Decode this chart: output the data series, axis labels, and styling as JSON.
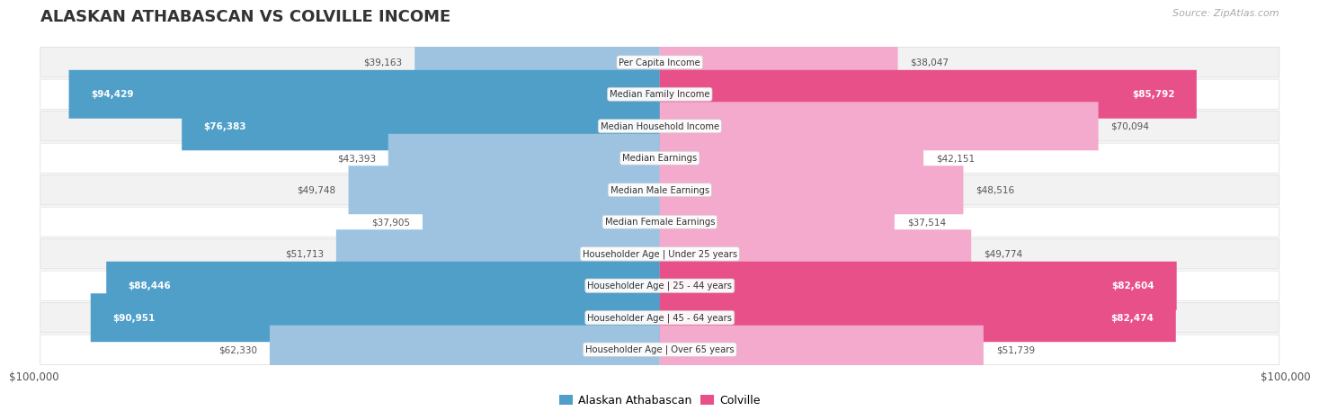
{
  "title": "ALASKAN ATHABASCAN VS COLVILLE INCOME",
  "source": "Source: ZipAtlas.com",
  "categories": [
    "Per Capita Income",
    "Median Family Income",
    "Median Household Income",
    "Median Earnings",
    "Median Male Earnings",
    "Median Female Earnings",
    "Householder Age | Under 25 years",
    "Householder Age | 25 - 44 years",
    "Householder Age | 45 - 64 years",
    "Householder Age | Over 65 years"
  ],
  "alaskan_values": [
    39163,
    94429,
    76383,
    43393,
    49748,
    37905,
    51713,
    88446,
    90951,
    62330
  ],
  "colville_values": [
    38047,
    85792,
    70094,
    42151,
    48516,
    37514,
    49774,
    82604,
    82474,
    51739
  ],
  "alaskan_labels": [
    "$39,163",
    "$94,429",
    "$76,383",
    "$43,393",
    "$49,748",
    "$37,905",
    "$51,713",
    "$88,446",
    "$90,951",
    "$62,330"
  ],
  "colville_labels": [
    "$38,047",
    "$85,792",
    "$70,094",
    "$42,151",
    "$48,516",
    "$37,514",
    "$49,774",
    "$82,604",
    "$82,474",
    "$51,739"
  ],
  "alaskan_color_light": "#9dc3e0",
  "alaskan_color_dark": "#4f9fc8",
  "colville_color_light": "#f4aacc",
  "colville_color_dark": "#e8508a",
  "alaskan_threshold": 75000,
  "colville_threshold": 75000,
  "max_value": 100000,
  "xlabel_left": "$100,000",
  "xlabel_right": "$100,000",
  "legend_alaskan": "Alaskan Athabascan",
  "legend_colville": "Colville",
  "bg_color": "#ffffff",
  "row_colors": [
    "#f2f2f2",
    "#ffffff"
  ],
  "row_border_color": "#d8d8d8",
  "label_dark_color": "#555555",
  "label_white_color": "#ffffff",
  "title_color": "#333333",
  "source_color": "#aaaaaa",
  "xtick_color": "#555555"
}
